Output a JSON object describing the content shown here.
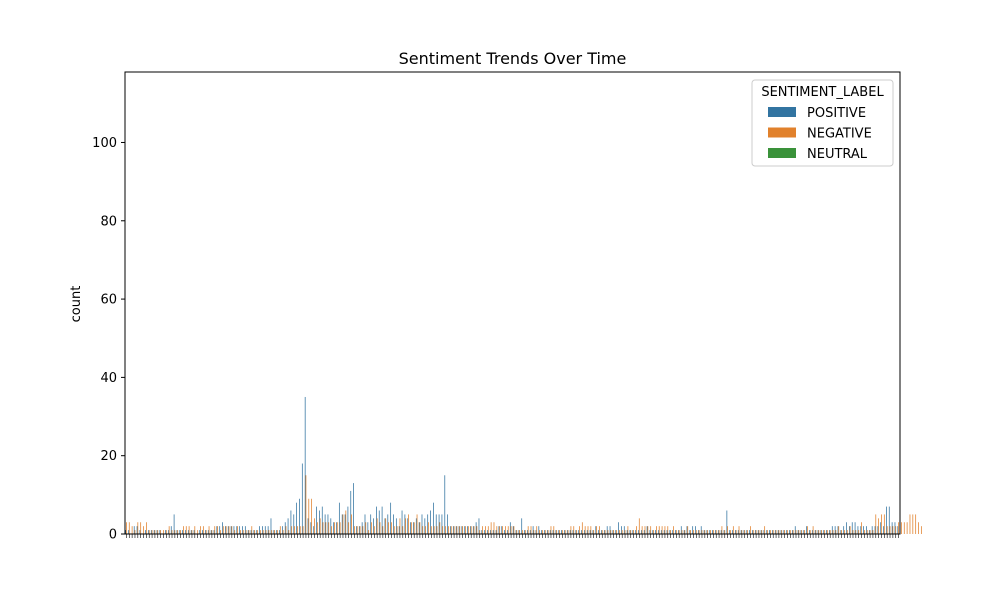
{
  "chart_data": {
    "type": "bar",
    "title": "Sentiment Trends Over Time",
    "xlabel": "",
    "ylabel": "count",
    "ylim": [
      0,
      118
    ],
    "yticks": [
      0,
      20,
      40,
      60,
      80,
      100
    ],
    "grid": false,
    "legend": {
      "title": "SENTIMENT_LABEL",
      "placement": "top-right"
    },
    "series": [
      {
        "name": "POSITIVE",
        "color": "#3274a1",
        "values": [
          1,
          1,
          0,
          2,
          2,
          1,
          0,
          1,
          1,
          1,
          1,
          1,
          1,
          0,
          1,
          1,
          2,
          5,
          1,
          1,
          1,
          1,
          1,
          1,
          1,
          0,
          1,
          1,
          1,
          1,
          1,
          1,
          2,
          2,
          3,
          2,
          2,
          2,
          2,
          2,
          2,
          2,
          2,
          1,
          1,
          1,
          1,
          2,
          2,
          2,
          2,
          4,
          1,
          1,
          1,
          2,
          3,
          4,
          6,
          5,
          8,
          9,
          18,
          35,
          4,
          3,
          2,
          7,
          6,
          7,
          5,
          5,
          4,
          3,
          3,
          8,
          5,
          5,
          7,
          11,
          13,
          2,
          2,
          3,
          5,
          3,
          5,
          4,
          7,
          6,
          7,
          4,
          5,
          8,
          5,
          4,
          2,
          6,
          5,
          4,
          3,
          3,
          4,
          3,
          5,
          4,
          5,
          6,
          8,
          5,
          5,
          5,
          15,
          5,
          2,
          2,
          2,
          2,
          2,
          2,
          2,
          2,
          2,
          3,
          4,
          1,
          1,
          1,
          1,
          1,
          1,
          2,
          2,
          1,
          1,
          3,
          2,
          1,
          1,
          4,
          1,
          1,
          1,
          2,
          1,
          2,
          1,
          1,
          1,
          1,
          1,
          1,
          1,
          1,
          1,
          1,
          1,
          1,
          1,
          1,
          1,
          1,
          1,
          1,
          1,
          2,
          1,
          1,
          1,
          2,
          2,
          1,
          1,
          3,
          2,
          2,
          1,
          1,
          1,
          1,
          1,
          1,
          1,
          2,
          1,
          1,
          1,
          1,
          1,
          1,
          1,
          1,
          1,
          1,
          1,
          2,
          1,
          2,
          1,
          2,
          2,
          1,
          2,
          1,
          1,
          1,
          1,
          1,
          1,
          1,
          1,
          6,
          1,
          1,
          1,
          1,
          1,
          1,
          1,
          1,
          1,
          1,
          1,
          1,
          1,
          1,
          1,
          1,
          1,
          1,
          1,
          1,
          1,
          1,
          1,
          2,
          1,
          1,
          1,
          2,
          1,
          1,
          1,
          1,
          1,
          1,
          1,
          1,
          2,
          2,
          2,
          1,
          2,
          3,
          2,
          3,
          3,
          2,
          2,
          2,
          2,
          1,
          2,
          2,
          2,
          3,
          2,
          7,
          7,
          3,
          3,
          2
        ]
      },
      {
        "name": "NEGATIVE",
        "color": "#e1812c",
        "values": [
          3,
          3,
          2,
          1,
          3,
          3,
          2,
          3,
          1,
          1,
          1,
          1,
          1,
          1,
          1,
          2,
          1,
          1,
          1,
          1,
          2,
          2,
          2,
          1,
          2,
          1,
          2,
          2,
          1,
          2,
          1,
          2,
          2,
          1,
          2,
          2,
          2,
          2,
          1,
          2,
          1,
          1,
          1,
          1,
          2,
          1,
          1,
          1,
          1,
          1,
          1,
          1,
          1,
          1,
          2,
          1,
          2,
          1,
          2,
          2,
          2,
          2,
          2,
          15,
          9,
          9,
          4,
          3,
          4,
          3,
          3,
          3,
          2,
          3,
          3,
          3,
          5,
          6,
          3,
          5,
          2,
          2,
          2,
          2,
          3,
          1,
          3,
          2,
          4,
          3,
          2,
          4,
          3,
          3,
          2,
          2,
          4,
          2,
          4,
          5,
          3,
          3,
          5,
          3,
          2,
          2,
          3,
          2,
          2,
          2,
          3,
          2,
          2,
          2,
          2,
          2,
          2,
          2,
          2,
          2,
          2,
          2,
          2,
          2,
          1,
          2,
          2,
          2,
          3,
          3,
          2,
          2,
          2,
          2,
          2,
          2,
          2,
          1,
          1,
          1,
          1,
          2,
          2,
          1,
          2,
          1,
          1,
          1,
          1,
          2,
          2,
          1,
          1,
          1,
          1,
          1,
          2,
          2,
          1,
          2,
          3,
          2,
          2,
          2,
          1,
          2,
          2,
          1,
          1,
          1,
          1,
          1,
          1,
          1,
          1,
          1,
          2,
          1,
          1,
          2,
          4,
          2,
          2,
          2,
          2,
          1,
          2,
          2,
          2,
          2,
          2,
          1,
          2,
          1,
          1,
          1,
          1,
          2,
          1,
          1,
          1,
          1,
          1,
          1,
          1,
          1,
          1,
          1,
          1,
          2,
          1,
          2,
          1,
          2,
          1,
          2,
          1,
          1,
          1,
          2,
          1,
          1,
          1,
          1,
          2,
          1,
          1,
          1,
          1,
          1,
          1,
          1,
          1,
          1,
          1,
          1,
          1,
          1,
          1,
          2,
          1,
          2,
          1,
          1,
          1,
          1,
          1,
          1,
          1,
          1,
          2,
          1,
          1,
          1,
          2,
          1,
          1,
          1,
          3,
          1,
          1,
          1,
          1,
          5,
          4,
          5,
          5,
          2,
          2,
          2,
          2,
          3,
          3,
          3,
          3,
          5,
          5,
          5,
          3,
          2
        ]
      },
      {
        "name": "NEUTRAL",
        "color": "#3a923a",
        "values": [
          0,
          0,
          0,
          0,
          0,
          0,
          0,
          0,
          0,
          0,
          0,
          0,
          0,
          0,
          0,
          0,
          0,
          0,
          0,
          0,
          0,
          0,
          0,
          0,
          0,
          0,
          0,
          0,
          0,
          0,
          0,
          0,
          0,
          0,
          0,
          0,
          0,
          0,
          0,
          0,
          0,
          0,
          0,
          0,
          0,
          0,
          0,
          0,
          0,
          0,
          0,
          0,
          0,
          0,
          0,
          0,
          0,
          0,
          0,
          0,
          0,
          0,
          0,
          0,
          0,
          0,
          0,
          0,
          0,
          0,
          0,
          0,
          0,
          0,
          0,
          0,
          0,
          0,
          0,
          0,
          0,
          0,
          0,
          0,
          0,
          0,
          0,
          0,
          0,
          0,
          0,
          0,
          0,
          0,
          0,
          0,
          0,
          0,
          0,
          0,
          0,
          0,
          0,
          0,
          0,
          0,
          0,
          0,
          0,
          0,
          0,
          0,
          0,
          0,
          0,
          0,
          0,
          0,
          0,
          0,
          0,
          0,
          0,
          0,
          0,
          0,
          0,
          0,
          0,
          0,
          0,
          0,
          0,
          0,
          0,
          0,
          0,
          0,
          0,
          0,
          0,
          0,
          0,
          0,
          0,
          0,
          0,
          0,
          0,
          0,
          0,
          0,
          0,
          0,
          0,
          0,
          0,
          0,
          0,
          0,
          0,
          0,
          0,
          0,
          0,
          0,
          0,
          0,
          0,
          0,
          0,
          0,
          0,
          0,
          0,
          0,
          0,
          0,
          0,
          0,
          0,
          0,
          0,
          0,
          0,
          0,
          0,
          0,
          0,
          0,
          0,
          0,
          0,
          0,
          0,
          0,
          0,
          0,
          0,
          0,
          0,
          0,
          0,
          0,
          0,
          0,
          0,
          0,
          0,
          0,
          0,
          0,
          0,
          0,
          0,
          0,
          0,
          0,
          0,
          0,
          0,
          0,
          0,
          0,
          0,
          0,
          0,
          0,
          0,
          0,
          0,
          0,
          0,
          0,
          0,
          0,
          0,
          0,
          0,
          0,
          0,
          0,
          0,
          0,
          0,
          0,
          0,
          0,
          0,
          0,
          0,
          0,
          0,
          0,
          0,
          0,
          0,
          0,
          0,
          0,
          0,
          0,
          0,
          0,
          0,
          0,
          0,
          0,
          0,
          0,
          0,
          0,
          0,
          0,
          0,
          0,
          0,
          0,
          0,
          0
        ]
      }
    ]
  }
}
